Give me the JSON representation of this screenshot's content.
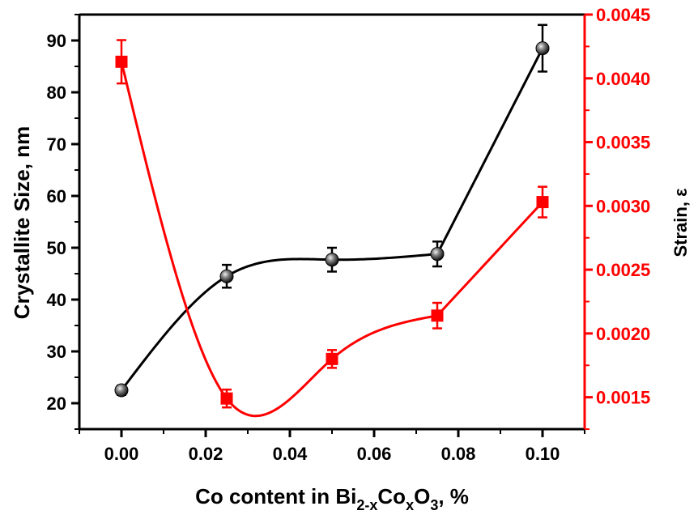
{
  "chart_data": {
    "type": "scatter",
    "x": [
      0.0,
      0.025,
      0.05,
      0.075,
      0.1
    ],
    "xlim": [
      -0.01,
      0.11
    ],
    "xticks": [
      "0.00",
      "0.02",
      "0.04",
      "0.06",
      "0.08",
      "0.10"
    ],
    "xtick_values": [
      0.0,
      0.02,
      0.04,
      0.06,
      0.08,
      0.1
    ],
    "xlabel_parts": {
      "before": "Co content in Bi",
      "sub1": "2-x",
      "mid1": "Co",
      "sub2": "x",
      "mid2": "O",
      "sub3": "3",
      "after": ", %"
    },
    "y_left": {
      "label": "Crystallite Size, nm",
      "ylim": [
        15,
        95
      ],
      "ticks": [
        "20",
        "30",
        "40",
        "50",
        "60",
        "70",
        "80",
        "90"
      ],
      "tick_values": [
        20,
        30,
        40,
        50,
        60,
        70,
        80,
        90
      ],
      "color": "#000000"
    },
    "y_right": {
      "label": "Strain, ε",
      "ylim": [
        0.00125,
        0.0045
      ],
      "ticks": [
        "0.0015",
        "0.0020",
        "0.0025",
        "0.0030",
        "0.0035",
        "0.0040",
        "0.0045"
      ],
      "tick_values": [
        0.0015,
        0.002,
        0.0025,
        0.003,
        0.0035,
        0.004,
        0.0045
      ],
      "color": "#ff0000"
    },
    "series": [
      {
        "axis": "left",
        "marker": "sphere",
        "color": "#000000",
        "values": [
          22.5,
          44.5,
          47.7,
          48.8,
          88.5
        ],
        "errors": [
          0.9,
          2.2,
          2.3,
          2.4,
          4.5
        ]
      },
      {
        "axis": "right",
        "marker": "square",
        "color": "#ff0000",
        "values": [
          0.00413,
          0.00149,
          0.0018,
          0.00214,
          0.00303
        ],
        "errors": [
          0.00017,
          7e-05,
          7e-05,
          0.0001,
          0.00012
        ]
      }
    ]
  }
}
